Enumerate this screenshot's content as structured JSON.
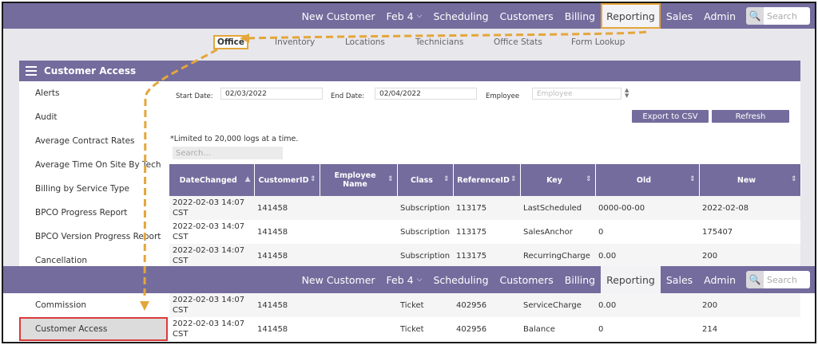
{
  "nav": {
    "items": [
      {
        "label": "New Customer",
        "name": "nav-new-customer",
        "active": false
      },
      {
        "label": "Feb 4",
        "name": "nav-feb-4",
        "active": false,
        "chevron": true
      },
      {
        "label": "Scheduling",
        "name": "nav-scheduling",
        "active": false
      },
      {
        "label": "Customers",
        "name": "nav-customers",
        "active": false
      },
      {
        "label": "Billing",
        "name": "nav-billing",
        "active": false
      },
      {
        "label": "Reporting",
        "name": "nav-reporting",
        "active": true
      },
      {
        "label": "Sales",
        "name": "nav-sales",
        "active": false
      },
      {
        "label": "Admin",
        "name": "nav-admin",
        "active": false
      }
    ],
    "search_placeholder": "Search"
  },
  "subnav": {
    "items": [
      {
        "label": "Office",
        "active": true
      },
      {
        "label": "Inventory",
        "active": false
      },
      {
        "label": "Locations",
        "active": false
      },
      {
        "label": "Technicians",
        "active": false
      },
      {
        "label": "Office Stats",
        "active": false
      },
      {
        "label": "Form Lookup",
        "active": false
      }
    ]
  },
  "panel": {
    "title": "Customer Access"
  },
  "sidebar": {
    "items": [
      "Alerts",
      "Audit",
      "Average Contract Rates",
      "Average Time On Site By Tech",
      "Billing by Service Type",
      "BPCO Progress Report",
      "BPCO Version Progress Report",
      "Cancellation"
    ],
    "lower_items": [
      {
        "label": "Commission",
        "active": false
      },
      {
        "label": "Customer Access",
        "active": true
      }
    ]
  },
  "filters": {
    "start_label": "Start Date:",
    "start_value": "02/03/2022",
    "end_label": "End Date:",
    "end_value": "02/04/2022",
    "employee_label": "Employee",
    "employee_placeholder": "Employee"
  },
  "buttons": {
    "export": "Export to CSV",
    "refresh": "Refresh"
  },
  "limit_note": "*Limited to 20,000 logs at a time.",
  "table_search_placeholder": "Search...",
  "table": {
    "headers": [
      "DateChanged",
      "CustomerID",
      "Employee Name",
      "Class",
      "ReferenceID",
      "Key",
      "Old",
      "New"
    ],
    "rows": [
      [
        "2022-02-03 14:07 CST",
        "141458",
        "",
        "Subscription",
        "113175",
        "LastScheduled",
        "0000-00-00",
        "2022-02-08"
      ],
      [
        "2022-02-03 14:07 CST",
        "141458",
        "",
        "Subscription",
        "113175",
        "SalesAnchor",
        "0",
        "175407"
      ],
      [
        "2022-02-03 14:07 CST",
        "141458",
        "",
        "Subscription",
        "113175",
        "RecurringCharge",
        "0.00",
        "200"
      ]
    ],
    "lower_rows": [
      [
        "2022-02-03 14:07 CST",
        "141458",
        "",
        "Ticket",
        "402956",
        "ServiceCharge",
        "0.00",
        "200"
      ],
      [
        "2022-02-03 14:07 CST",
        "141458",
        "",
        "Ticket",
        "402956",
        "Balance",
        "0",
        "214"
      ]
    ]
  },
  "colors": {
    "nav": "#736c9d",
    "highlight": "#e4a63a",
    "active_outline": "#d93b3b"
  }
}
